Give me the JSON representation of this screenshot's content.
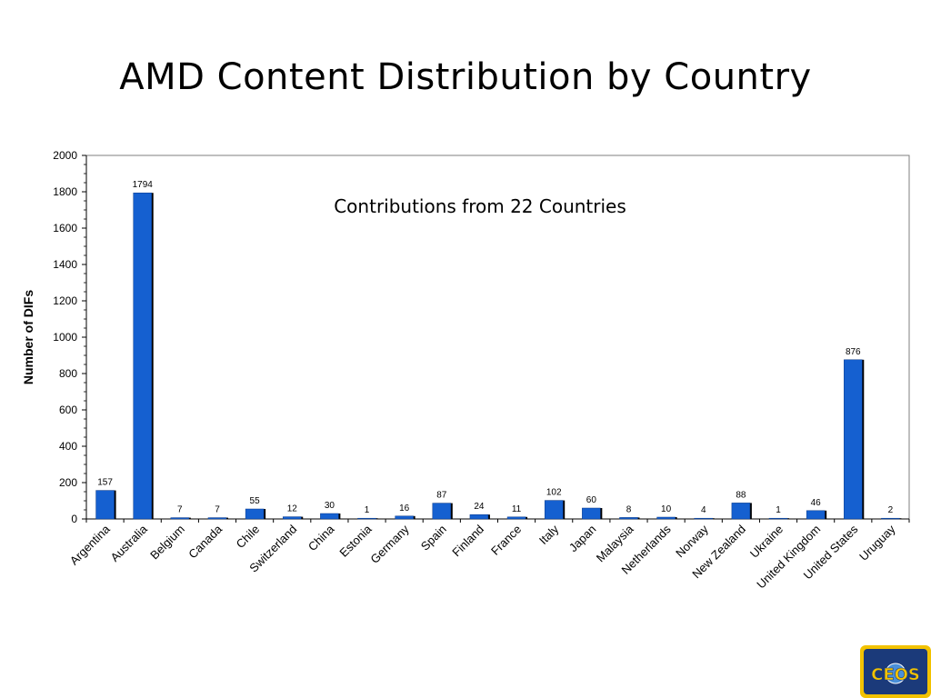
{
  "slide": {
    "title": "AMD Content Distribution by Country"
  },
  "chart_data": {
    "type": "bar",
    "annotation": "Contributions from 22 Countries",
    "ylabel": "Number of DIFs",
    "xlabel": "",
    "ylim": [
      0,
      2000
    ],
    "ytick_step": 200,
    "ytick_labels": [
      "0",
      "200",
      "400",
      "600",
      "800",
      "1000",
      "1200",
      "1400",
      "1600",
      "1800",
      "2000"
    ],
    "grid": false,
    "bar_color": "#1560d0",
    "categories": [
      "Argentina",
      "Australia",
      "Belgium",
      "Canada",
      "Chile",
      "Switzerland",
      "China",
      "Estonia",
      "Germany",
      "Spain",
      "Finland",
      "France",
      "Italy",
      "Japan",
      "Malaysia",
      "Netherlands",
      "Norway",
      "New Zealand",
      "Ukraine",
      "United Kingdom",
      "United States",
      "Uruguay"
    ],
    "values": [
      157,
      1794,
      7,
      7,
      55,
      12,
      30,
      1,
      16,
      87,
      24,
      11,
      102,
      60,
      8,
      10,
      4,
      88,
      1,
      46,
      876,
      2
    ],
    "data_labels": [
      "157",
      "1794",
      "7",
      "7",
      "55",
      "12",
      "30",
      "1",
      "16",
      "87",
      "24",
      "11",
      "102",
      "60",
      "8",
      "10",
      "4",
      "88",
      "1",
      "46",
      "876",
      "2"
    ]
  },
  "logo": {
    "text": "CEOS",
    "colors": {
      "navy": "#1b3a7a",
      "gold": "#f2c200",
      "globe": "#4a90d9"
    }
  }
}
